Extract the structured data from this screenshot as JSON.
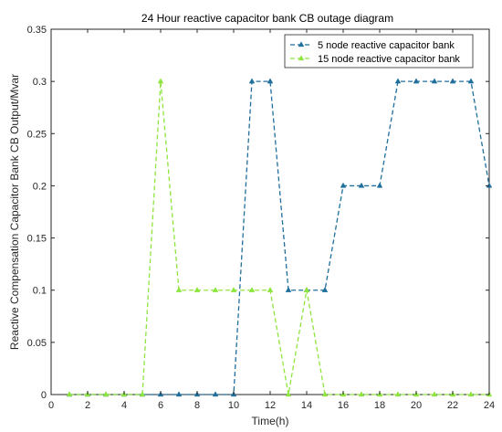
{
  "chart_data": {
    "type": "line",
    "title": "24 Hour reactive capacitor bank CB outage diagram",
    "xlabel": "Time(h)",
    "ylabel": "Reactive Compensation Capacitor Bank CB Output/Mvar",
    "xlim": [
      0,
      24
    ],
    "ylim": [
      0,
      0.35
    ],
    "xticks": [
      0,
      2,
      4,
      6,
      8,
      10,
      12,
      14,
      16,
      18,
      20,
      22,
      24
    ],
    "yticks": [
      0,
      0.05,
      0.1,
      0.15,
      0.2,
      0.25,
      0.3,
      0.35
    ],
    "grid": false,
    "legend_position": "top-right",
    "x": [
      1,
      2,
      3,
      4,
      5,
      6,
      7,
      8,
      9,
      10,
      11,
      12,
      13,
      14,
      15,
      16,
      17,
      18,
      19,
      20,
      21,
      22,
      23,
      24
    ],
    "series": [
      {
        "name": "5 node reactive capacitor bank",
        "color": "#1f6e9c",
        "marker": "triangle-up",
        "linestyle": "dashed",
        "values": [
          0,
          0,
          0,
          0,
          0,
          0,
          0,
          0,
          0,
          0,
          0.3,
          0.3,
          0.1,
          0.1,
          0.1,
          0.2,
          0.2,
          0.2,
          0.3,
          0.3,
          0.3,
          0.3,
          0.3,
          0.2
        ]
      },
      {
        "name": "15 node reactive capacitor bank",
        "color": "#8ee53f",
        "marker": "triangle-up",
        "linestyle": "dashed",
        "values": [
          0,
          0,
          0,
          0,
          0,
          0.3,
          0.1,
          0.1,
          0.1,
          0.1,
          0.1,
          0.1,
          0,
          0.1,
          0,
          0,
          0,
          0,
          0,
          0,
          0,
          0,
          0,
          0
        ]
      }
    ]
  }
}
